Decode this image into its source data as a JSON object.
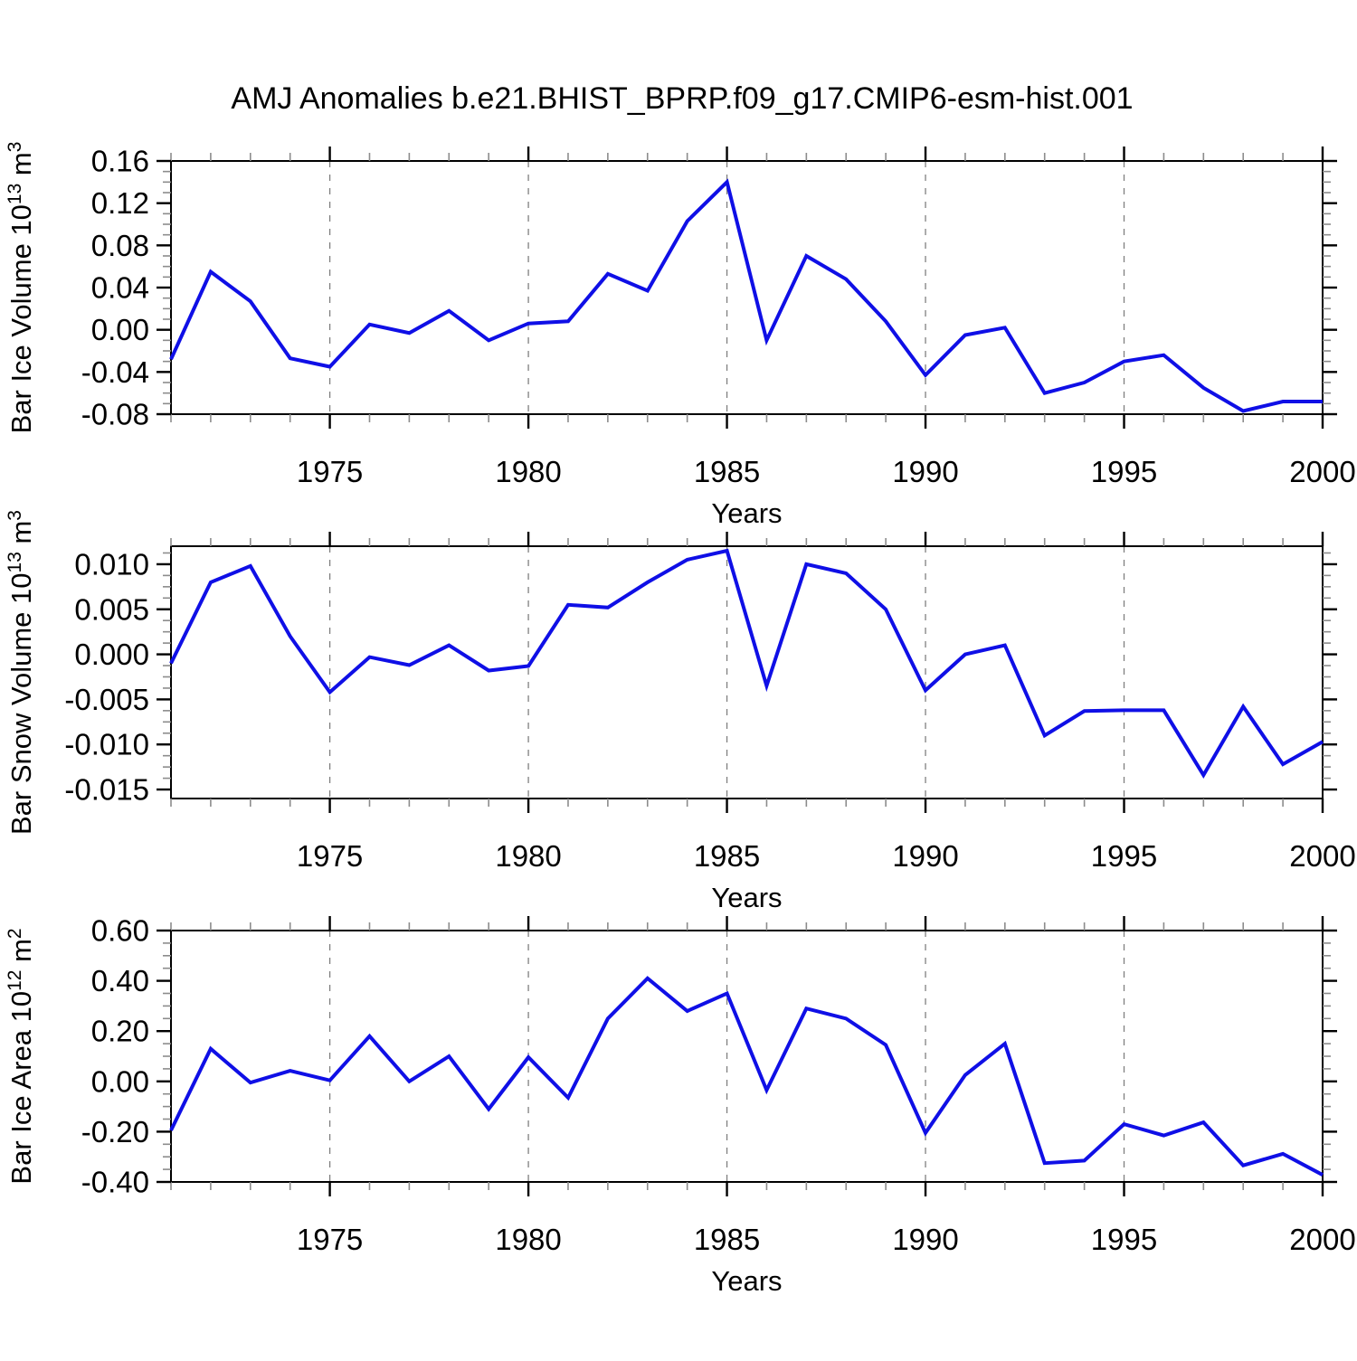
{
  "title": "AMJ Anomalies b.e21.BHIST_BPRP.f09_g17.CMIP6-esm-hist.001",
  "xlabel": "Years",
  "colors": {
    "line": "#0F0FE6",
    "grid": "#7F7F7F",
    "axis": "#000000",
    "minor_tick": "#8C8C8C"
  },
  "chart_data": [
    {
      "name": "ice-volume",
      "type": "line",
      "ylabel": "Bar Ice Volume 10¹³ m³",
      "ylabel_rich": [
        [
          "Bar Ice Volume 10",
          false
        ],
        [
          "13",
          true
        ],
        [
          " m",
          false
        ],
        [
          "3",
          true
        ]
      ],
      "xlabel": "Years",
      "x": [
        1971,
        1972,
        1973,
        1974,
        1975,
        1976,
        1977,
        1978,
        1979,
        1980,
        1981,
        1982,
        1983,
        1984,
        1985,
        1986,
        1987,
        1988,
        1989,
        1990,
        1991,
        1992,
        1993,
        1994,
        1995,
        1996,
        1997,
        1998,
        1999,
        2000
      ],
      "values": [
        -0.028,
        0.055,
        0.027,
        -0.027,
        -0.035,
        0.005,
        -0.003,
        0.018,
        -0.01,
        0.006,
        0.008,
        0.053,
        0.037,
        0.103,
        0.14,
        -0.01,
        0.07,
        0.048,
        0.008,
        -0.043,
        -0.005,
        0.002,
        -0.06,
        -0.05,
        -0.03,
        -0.024,
        -0.055,
        -0.077,
        -0.068,
        -0.068
      ],
      "ylim": [
        -0.08,
        0.16
      ],
      "y_major_step": 0.04,
      "y_minor_step": 0.01,
      "yticks": [
        {
          "v": 0.16,
          "label": "0.16"
        },
        {
          "v": 0.12,
          "label": "0.12"
        },
        {
          "v": 0.08,
          "label": "0.08"
        },
        {
          "v": 0.04,
          "label": "0.04"
        },
        {
          "v": 0.0,
          "label": "0.00"
        },
        {
          "v": -0.04,
          "label": "-0.04"
        },
        {
          "v": -0.08,
          "label": "-0.08"
        }
      ],
      "xlim": [
        1971,
        2000
      ],
      "x_minor_step": 1,
      "xticks": [
        {
          "v": 1975,
          "label": "1975"
        },
        {
          "v": 1980,
          "label": "1980"
        },
        {
          "v": 1985,
          "label": "1985"
        },
        {
          "v": 1990,
          "label": "1990"
        },
        {
          "v": 1995,
          "label": "1995"
        },
        {
          "v": 2000,
          "label": "2000"
        }
      ],
      "grid_x": [
        1975,
        1980,
        1985,
        1990,
        1995
      ]
    },
    {
      "name": "snow-volume",
      "type": "line",
      "ylabel": "Bar Snow Volume 10¹³ m³",
      "ylabel_rich": [
        [
          "Bar Snow Volume 10",
          false
        ],
        [
          "13",
          true
        ],
        [
          " m",
          false
        ],
        [
          "3",
          true
        ]
      ],
      "xlabel": "Years",
      "x": [
        1971,
        1972,
        1973,
        1974,
        1975,
        1976,
        1977,
        1978,
        1979,
        1980,
        1981,
        1982,
        1983,
        1984,
        1985,
        1986,
        1987,
        1988,
        1989,
        1990,
        1991,
        1992,
        1993,
        1994,
        1995,
        1996,
        1997,
        1998,
        1999,
        2000
      ],
      "values": [
        -0.001,
        0.008,
        0.0098,
        0.002,
        -0.0042,
        -0.0003,
        -0.0012,
        0.001,
        -0.0018,
        -0.0013,
        0.0055,
        0.0052,
        0.008,
        0.0105,
        0.0115,
        -0.0035,
        0.01,
        0.009,
        0.005,
        -0.004,
        0.0,
        0.001,
        -0.009,
        -0.0063,
        -0.0062,
        -0.0062,
        -0.0134,
        -0.0058,
        -0.0122,
        -0.0097
      ],
      "ylim": [
        -0.016,
        0.012
      ],
      "y_major_step": 0.005,
      "y_minor_step": 0.00125,
      "yticks": [
        {
          "v": 0.01,
          "label": "0.010"
        },
        {
          "v": 0.005,
          "label": "0.005"
        },
        {
          "v": 0.0,
          "label": "0.000"
        },
        {
          "v": -0.005,
          "label": "-0.005"
        },
        {
          "v": -0.01,
          "label": "-0.010"
        },
        {
          "v": -0.015,
          "label": "-0.015"
        }
      ],
      "xlim": [
        1971,
        2000
      ],
      "x_minor_step": 1,
      "xticks": [
        {
          "v": 1975,
          "label": "1975"
        },
        {
          "v": 1980,
          "label": "1980"
        },
        {
          "v": 1985,
          "label": "1985"
        },
        {
          "v": 1990,
          "label": "1990"
        },
        {
          "v": 1995,
          "label": "1995"
        },
        {
          "v": 2000,
          "label": "2000"
        }
      ],
      "grid_x": [
        1975,
        1980,
        1985,
        1990,
        1995
      ]
    },
    {
      "name": "ice-area",
      "type": "line",
      "ylabel": "Bar Ice Area 10¹² m²",
      "ylabel_rich": [
        [
          "Bar Ice Area 10",
          false
        ],
        [
          "12",
          true
        ],
        [
          " m",
          false
        ],
        [
          "2",
          true
        ]
      ],
      "xlabel": "Years",
      "x": [
        1971,
        1972,
        1973,
        1974,
        1975,
        1976,
        1977,
        1978,
        1979,
        1980,
        1981,
        1982,
        1983,
        1984,
        1985,
        1986,
        1987,
        1988,
        1989,
        1990,
        1991,
        1992,
        1993,
        1994,
        1995,
        1996,
        1997,
        1998,
        1999,
        2000
      ],
      "values": [
        -0.195,
        0.13,
        -0.005,
        0.042,
        0.004,
        0.18,
        0.0,
        0.1,
        -0.11,
        0.096,
        -0.065,
        0.25,
        0.41,
        0.28,
        0.35,
        -0.035,
        0.29,
        0.25,
        0.145,
        -0.205,
        0.025,
        0.15,
        -0.325,
        -0.315,
        -0.17,
        -0.215,
        -0.163,
        -0.334,
        -0.288,
        -0.372
      ],
      "ylim": [
        -0.4,
        0.6
      ],
      "y_major_step": 0.2,
      "y_minor_step": 0.05,
      "yticks": [
        {
          "v": 0.6,
          "label": "0.60"
        },
        {
          "v": 0.4,
          "label": "0.40"
        },
        {
          "v": 0.2,
          "label": "0.20"
        },
        {
          "v": 0.0,
          "label": "0.00"
        },
        {
          "v": -0.2,
          "label": "-0.20"
        },
        {
          "v": -0.4,
          "label": "-0.40"
        }
      ],
      "xlim": [
        1971,
        2000
      ],
      "x_minor_step": 1,
      "xticks": [
        {
          "v": 1975,
          "label": "1975"
        },
        {
          "v": 1980,
          "label": "1980"
        },
        {
          "v": 1985,
          "label": "1985"
        },
        {
          "v": 1990,
          "label": "1990"
        },
        {
          "v": 1995,
          "label": "1995"
        },
        {
          "v": 2000,
          "label": "2000"
        }
      ],
      "grid_x": [
        1975,
        1980,
        1985,
        1990,
        1995
      ]
    }
  ]
}
